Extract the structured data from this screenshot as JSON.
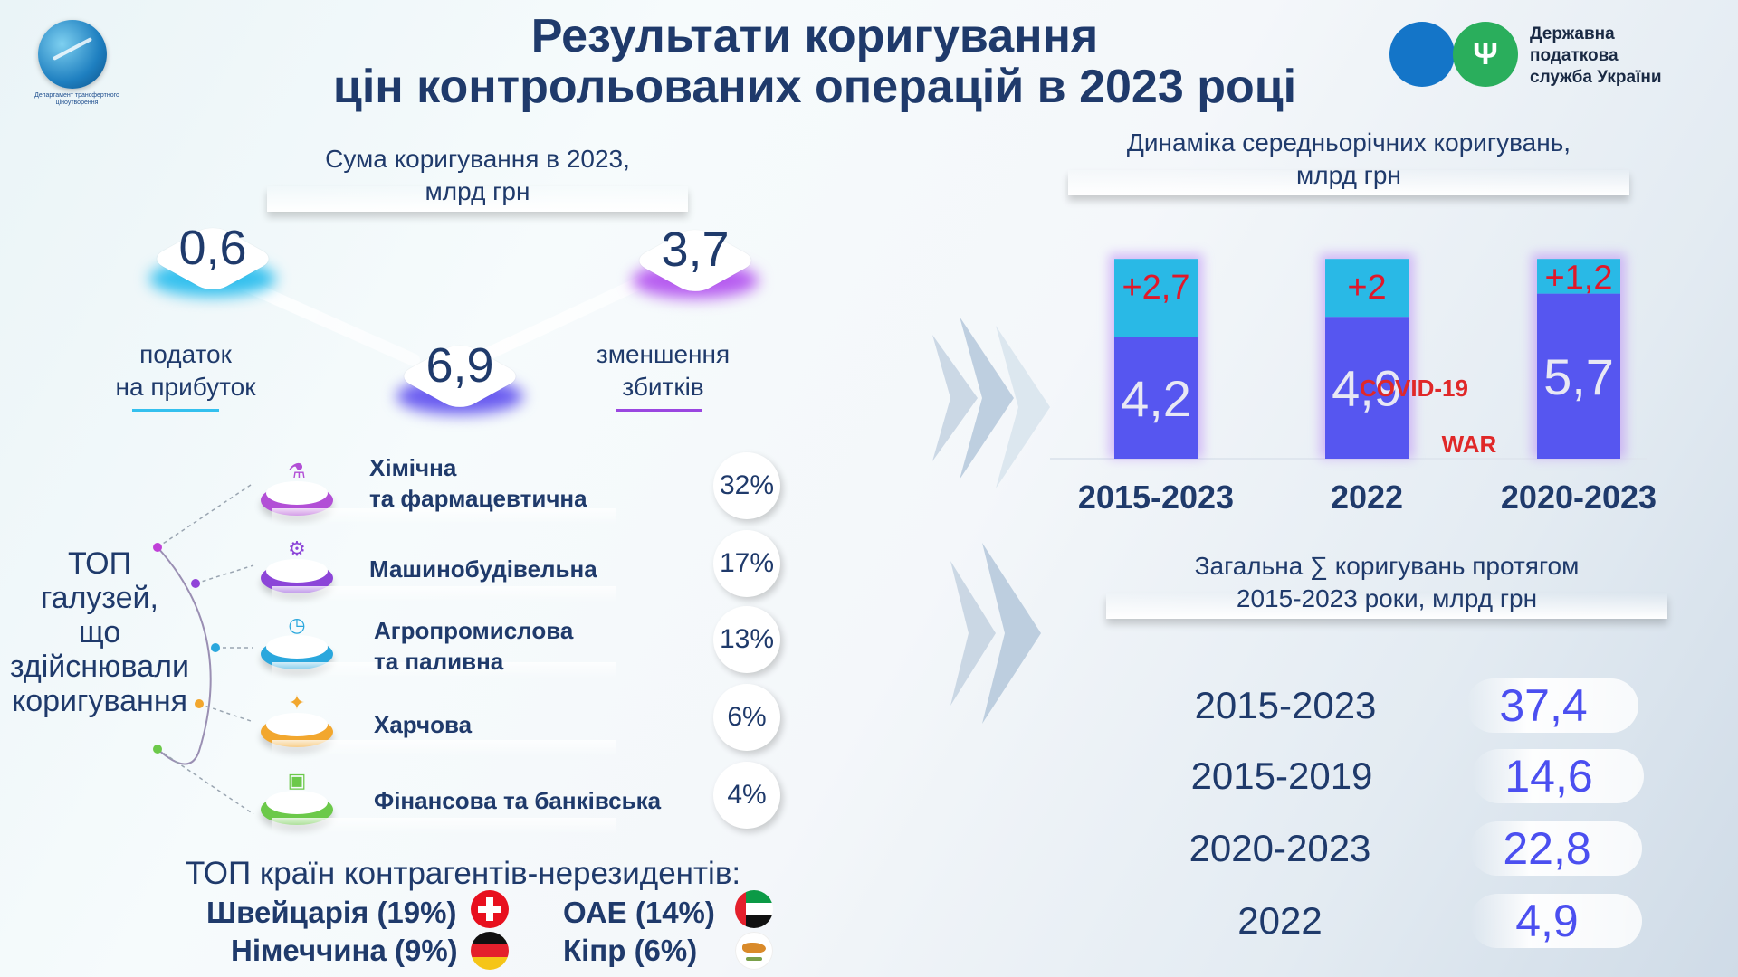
{
  "header": {
    "title_line1": "Результати коригування",
    "title_line2": "цін контрольованих операцій в 2023 році",
    "dept_caption": "Департамент трансфертного ціноутворення",
    "dps_name_line1": "Державна",
    "dps_name_line2": "податкова",
    "dps_name_line3": "служба України"
  },
  "summary": {
    "caption_line1": "Сума коригування в 2023,",
    "caption_line2": "млрд грн",
    "profit_tax_value": "0,6",
    "total_value": "6,9",
    "loss_reduction_value": "3,7",
    "profit_tax_label_line1": "податок",
    "profit_tax_label_line2": "на прибуток",
    "loss_reduction_label_line1": "зменшення",
    "loss_reduction_label_line2": "збитків"
  },
  "industries": {
    "title_line1": "ТОП",
    "title_line2": "галузей,",
    "title_line3": "що",
    "title_line4": "здійснювали",
    "title_line5": "коригування",
    "items": [
      {
        "label_line1": "Хімічна",
        "label_line2": "та фармацевтична",
        "pct": "32%",
        "color": "#b24fd6"
      },
      {
        "label_line1": "Машинобудівельна",
        "label_line2": "",
        "pct": "17%",
        "color": "#8c45d8"
      },
      {
        "label_line1": "Агропромислова",
        "label_line2": "та паливна",
        "pct": "13%",
        "color": "#2aa7dd"
      },
      {
        "label_line1": "Харчова",
        "label_line2": "",
        "pct": "6%",
        "color": "#f2a72e"
      },
      {
        "label_line1": "Фінансова та банківська",
        "label_line2": "",
        "pct": "4%",
        "color": "#6cc94a"
      }
    ]
  },
  "countries": {
    "title": "ТОП країн контрагентів-нерезидентів:",
    "items": [
      {
        "label": "Швейцарія  (19%)"
      },
      {
        "label": "ОАЕ (14%)"
      },
      {
        "label": "Німеччина (9%)"
      },
      {
        "label": "Кіпр (6%)"
      }
    ]
  },
  "dynamics": {
    "caption_line1": "Динаміка середньорічних коригувань,",
    "caption_line2": "млрд грн",
    "annotation_covid": "COVID-19",
    "annotation_war": "WAR"
  },
  "chart_data": {
    "type": "bar",
    "stacked": true,
    "categories": [
      "2015-2023",
      "2022",
      "2020-2023"
    ],
    "series": [
      {
        "values": [
          4.2,
          4.9,
          5.7
        ],
        "labels": [
          "4,2",
          "4,9",
          "5,7"
        ],
        "color": "#5656f0"
      },
      {
        "values": [
          2.7,
          2.0,
          1.2
        ],
        "labels": [
          "+2,7",
          "+2",
          "+1,2"
        ],
        "color": "#29b9e6"
      }
    ]
  },
  "totals": {
    "caption_line1": "Загальна ∑ коригувань протягом",
    "caption_line2": "2015-2023 роки, млрд грн",
    "rows": [
      {
        "period": "2015-2023",
        "value": "37,4"
      },
      {
        "period": "2015-2019",
        "value": "14,6"
      },
      {
        "period": "2020-2023",
        "value": "22,8"
      },
      {
        "period": "2022",
        "value": "4,9"
      }
    ]
  }
}
